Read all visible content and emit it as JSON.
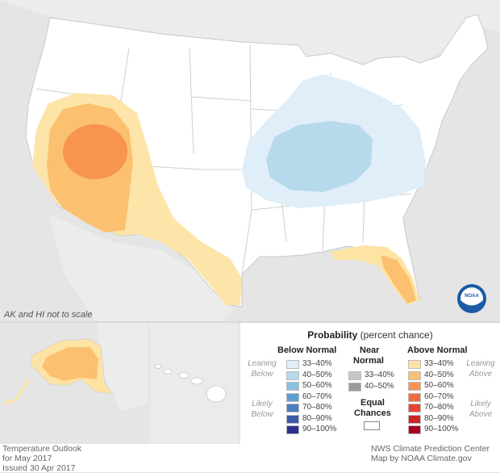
{
  "map_note": "AK and HI not to scale",
  "logo_text": "NOAA",
  "legend": {
    "title_bold": "Probability",
    "title_rest": " (percent chance)",
    "below": {
      "heading": "Below Normal",
      "bins": [
        "33–40%",
        "40–50%",
        "50–60%",
        "60–70%",
        "70–80%",
        "80–90%",
        "90–100%"
      ],
      "colors": [
        "#dfeef8",
        "#b7d9ec",
        "#8cc1de",
        "#5d9ecf",
        "#4c7dbf",
        "#3c58a8",
        "#2b2f8f"
      ]
    },
    "near": {
      "heading_line1": "Near",
      "heading_line2": "Normal",
      "bins": [
        "33–40%",
        "40–50%"
      ],
      "colors": [
        "#c7c7c7",
        "#9a9a9a"
      ]
    },
    "above": {
      "heading": "Above Normal",
      "bins": [
        "33–40%",
        "40–50%",
        "50–60%",
        "60–70%",
        "70–80%",
        "80–90%",
        "90–100%"
      ],
      "colors": [
        "#fde4a4",
        "#fbc170",
        "#f7944e",
        "#f16a3f",
        "#e54532",
        "#cc2427",
        "#a5001f"
      ]
    },
    "equal_line1": "Equal",
    "equal_line2": "Chances",
    "leaning_left_1": "Leaning",
    "leaning_left_2": "Below",
    "likely_left_1": "Likely",
    "likely_left_2": "Below",
    "leaning_right_1": "Leaning",
    "leaning_right_2": "Above",
    "likely_right_1": "Likely",
    "likely_right_2": "Above"
  },
  "footer": {
    "left_1": "Temperature Outlook",
    "left_2": "for May 2017",
    "left_3": "Issued 30 Apr 2017",
    "right_1": "NWS Climate Prediction Center",
    "right_2": "Map by NOAA Climate.gov"
  }
}
